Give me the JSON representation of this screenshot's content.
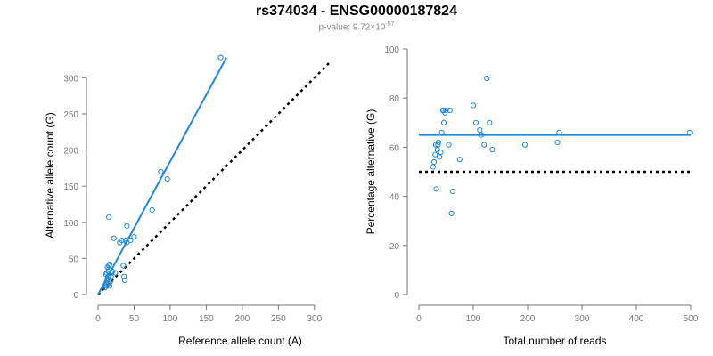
{
  "title": "rs374034 - ENSG00000187824",
  "subtitle": {
    "prefix": "p-value: 9.72×10",
    "exponent": "-57"
  },
  "chart_data": [
    {
      "type": "scatter",
      "xlabel": "Reference allele count (A)",
      "ylabel": "Alternative allele count (G)",
      "xlim": [
        0,
        320
      ],
      "ylim": [
        0,
        330
      ],
      "xticks": [
        "0",
        "50",
        "100",
        "150",
        "200",
        "250",
        "300"
      ],
      "yticks": [
        "0",
        "50",
        "100",
        "150",
        "200",
        "250",
        "300"
      ],
      "point_color": "#1f88d8",
      "fit_line": {
        "color": "#1f88d8",
        "x": [
          0,
          178
        ],
        "y": [
          0,
          328
        ]
      },
      "reference_line": {
        "color": "#000000",
        "style": "dotted",
        "x": [
          0,
          320
        ],
        "y": [
          0,
          320
        ]
      },
      "points": [
        [
          10,
          10
        ],
        [
          11,
          12
        ],
        [
          12,
          14
        ],
        [
          12,
          18
        ],
        [
          13,
          20
        ],
        [
          13,
          22
        ],
        [
          14,
          25
        ],
        [
          11,
          28
        ],
        [
          12,
          30
        ],
        [
          14,
          32
        ],
        [
          15,
          35
        ],
        [
          13,
          38
        ],
        [
          15,
          40
        ],
        [
          16,
          42
        ],
        [
          14,
          15
        ],
        [
          16,
          12
        ],
        [
          17,
          18
        ],
        [
          18,
          25
        ],
        [
          19,
          30
        ],
        [
          20,
          32
        ],
        [
          15,
          107
        ],
        [
          22,
          78
        ],
        [
          24,
          30
        ],
        [
          30,
          72
        ],
        [
          33,
          75
        ],
        [
          35,
          40
        ],
        [
          36,
          25
        ],
        [
          37,
          20
        ],
        [
          38,
          75
        ],
        [
          40,
          95
        ],
        [
          40,
          72
        ],
        [
          45,
          75
        ],
        [
          50,
          80
        ],
        [
          75,
          117
        ],
        [
          87,
          170
        ],
        [
          96,
          160
        ],
        [
          170,
          328
        ]
      ]
    },
    {
      "type": "scatter",
      "xlabel": "Total number of reads",
      "ylabel": "Percentage alternative (G)",
      "xlim": [
        0,
        500
      ],
      "ylim": [
        0,
        100
      ],
      "xticks": [
        "0",
        "100",
        "200",
        "300",
        "400",
        "500"
      ],
      "yticks": [
        "0",
        "20",
        "40",
        "60",
        "80",
        "100"
      ],
      "point_color": "#1f88d8",
      "fit_line": {
        "color": "#1f88d8",
        "x": [
          0,
          500
        ],
        "y": [
          65,
          65
        ]
      },
      "reference_line": {
        "color": "#000000",
        "style": "dotted",
        "x": [
          0,
          500
        ],
        "y": [
          50,
          50
        ]
      },
      "points": [
        [
          26,
          52
        ],
        [
          28,
          54
        ],
        [
          30,
          57
        ],
        [
          31,
          61
        ],
        [
          32,
          43
        ],
        [
          34,
          59
        ],
        [
          35,
          61
        ],
        [
          36,
          62
        ],
        [
          38,
          56
        ],
        [
          40,
          58
        ],
        [
          42,
          66
        ],
        [
          44,
          75
        ],
        [
          45,
          75
        ],
        [
          46,
          70
        ],
        [
          48,
          74
        ],
        [
          50,
          75
        ],
        [
          55,
          61
        ],
        [
          57,
          75
        ],
        [
          60,
          33
        ],
        [
          62,
          42
        ],
        [
          75,
          55
        ],
        [
          100,
          77
        ],
        [
          105,
          70
        ],
        [
          112,
          67
        ],
        [
          115,
          65
        ],
        [
          120,
          61
        ],
        [
          125,
          88
        ],
        [
          130,
          70
        ],
        [
          135,
          59
        ],
        [
          195,
          61
        ],
        [
          255,
          62
        ],
        [
          258,
          66
        ],
        [
          498,
          66
        ]
      ]
    }
  ]
}
